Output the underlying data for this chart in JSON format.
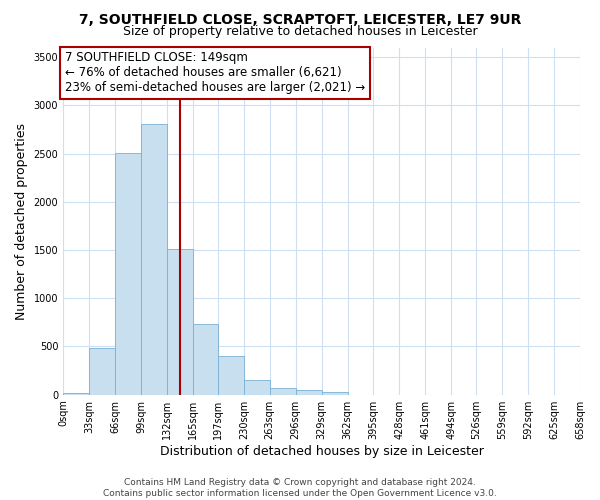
{
  "title_line1": "7, SOUTHFIELD CLOSE, SCRAPTOFT, LEICESTER, LE7 9UR",
  "title_line2": "Size of property relative to detached houses in Leicester",
  "xlabel": "Distribution of detached houses by size in Leicester",
  "ylabel": "Number of detached properties",
  "bar_edges": [
    0,
    33,
    66,
    99,
    132,
    165,
    197,
    230,
    263,
    296,
    329,
    362,
    395,
    428,
    461,
    494,
    526,
    559,
    592,
    625,
    658
  ],
  "bar_heights": [
    20,
    480,
    2510,
    2810,
    1510,
    730,
    400,
    150,
    70,
    50,
    30,
    0,
    0,
    0,
    0,
    0,
    0,
    0,
    0,
    0
  ],
  "bar_color": "#c8dff0",
  "bar_edgecolor": "#7ab0d4",
  "vline_x": 149,
  "vline_color": "#aa0000",
  "annotation_line1": "7 SOUTHFIELD CLOSE: 149sqm",
  "annotation_line2": "← 76% of detached houses are smaller (6,621)",
  "annotation_line3": "23% of semi-detached houses are larger (2,021) →",
  "ylim": [
    0,
    3600
  ],
  "xlim": [
    0,
    658
  ],
  "yticks": [
    0,
    500,
    1000,
    1500,
    2000,
    2500,
    3000,
    3500
  ],
  "xtick_labels": [
    "0sqm",
    "33sqm",
    "66sqm",
    "99sqm",
    "132sqm",
    "165sqm",
    "197sqm",
    "230sqm",
    "263sqm",
    "296sqm",
    "329sqm",
    "362sqm",
    "395sqm",
    "428sqm",
    "461sqm",
    "494sqm",
    "526sqm",
    "559sqm",
    "592sqm",
    "625sqm",
    "658sqm"
  ],
  "xtick_positions": [
    0,
    33,
    66,
    99,
    132,
    165,
    197,
    230,
    263,
    296,
    329,
    362,
    395,
    428,
    461,
    494,
    526,
    559,
    592,
    625,
    658
  ],
  "grid_color": "#cddff0",
  "background_color": "#ffffff",
  "footer_line1": "Contains HM Land Registry data © Crown copyright and database right 2024.",
  "footer_line2": "Contains public sector information licensed under the Open Government Licence v3.0.",
  "box_facecolor": "#ffffff",
  "box_edgecolor": "#aa0000",
  "title_fontsize": 10,
  "subtitle_fontsize": 9,
  "annotation_fontsize": 8.5,
  "axis_label_fontsize": 9,
  "tick_fontsize": 7,
  "footer_fontsize": 6.5
}
